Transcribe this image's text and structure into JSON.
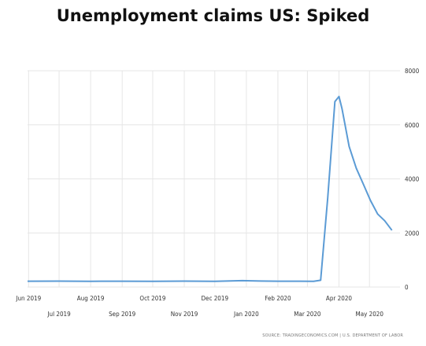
{
  "chart_data": {
    "type": "line",
    "title": "Unemployment claims US: Spiked",
    "xlabel": "",
    "ylabel": "",
    "ylim": [
      0,
      8000
    ],
    "yticks": [
      0,
      2000,
      4000,
      6000,
      8000
    ],
    "x_tick_labels_row1": [
      "Jun 2019",
      "Aug 2019",
      "Oct 2019",
      "Dec 2019",
      "Feb 2020",
      "Apr 2020"
    ],
    "x_tick_labels_row2": [
      "Jul 2019",
      "Sep 2019",
      "Nov 2019",
      "Jan 2020",
      "Mar 2020",
      "May 2020"
    ],
    "grid": true,
    "line_color": "#5b9bd5",
    "source": "SOURCE: TRADINGECONOMICS.COM | U.S. DEPARTMENT OF LABOR",
    "series": [
      {
        "values": [
          {
            "x": "2019-05-31",
            "y": 215
          },
          {
            "x": "2019-07-01",
            "y": 218
          },
          {
            "x": "2019-08-01",
            "y": 212
          },
          {
            "x": "2019-09-01",
            "y": 215
          },
          {
            "x": "2019-10-01",
            "y": 212
          },
          {
            "x": "2019-11-01",
            "y": 218
          },
          {
            "x": "2019-12-01",
            "y": 212
          },
          {
            "x": "2019-12-28",
            "y": 235
          },
          {
            "x": "2020-01-15",
            "y": 220
          },
          {
            "x": "2020-02-01",
            "y": 215
          },
          {
            "x": "2020-03-07",
            "y": 211
          },
          {
            "x": "2020-03-14",
            "y": 250
          },
          {
            "x": "2020-03-21",
            "y": 3300
          },
          {
            "x": "2020-03-28",
            "y": 6860
          },
          {
            "x": "2020-04-01",
            "y": 7050
          },
          {
            "x": "2020-04-04",
            "y": 6600
          },
          {
            "x": "2020-04-11",
            "y": 5200
          },
          {
            "x": "2020-04-18",
            "y": 4400
          },
          {
            "x": "2020-04-25",
            "y": 3800
          },
          {
            "x": "2020-05-02",
            "y": 3200
          },
          {
            "x": "2020-05-09",
            "y": 2700
          },
          {
            "x": "2020-05-16",
            "y": 2450
          },
          {
            "x": "2020-05-23",
            "y": 2100
          }
        ]
      }
    ]
  }
}
